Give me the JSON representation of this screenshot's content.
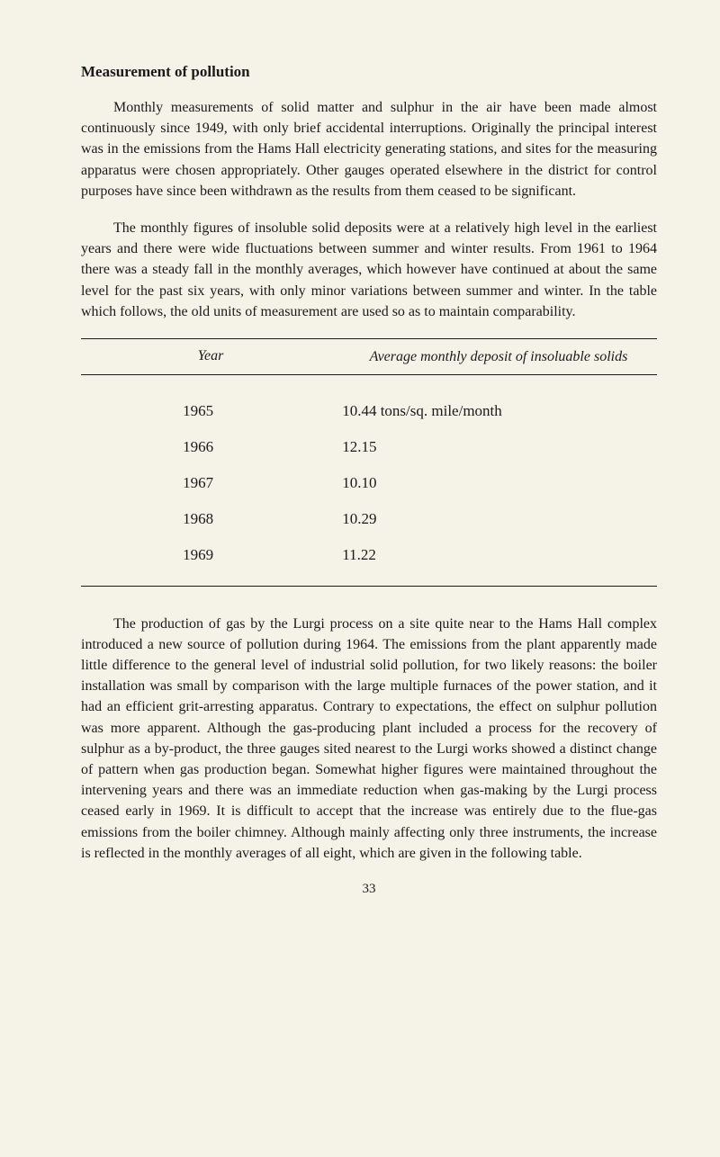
{
  "section_title": "Measurement of pollution",
  "paragraph_1": "Monthly measurements of solid matter and sulphur in the air have been made almost continuously since 1949, with only brief accidental interruptions. Originally the principal interest was in the emissions from the Hams Hall electricity generating stations, and sites for the measuring apparatus were chosen appropriately. Other gauges operated elsewhere in the district for control purposes have since been withdrawn as the results from them ceased to be significant.",
  "paragraph_2": "The monthly figures of insoluble solid deposits were at a relatively high level in the earliest years and there were wide fluctuations between summer and winter results. From 1961 to 1964 there was a steady fall in the monthly averages, which however have continued at about the same level for the past six years, with only minor variations between summer and winter. In the table which follows, the old units of measurement are used so as to maintain comparability.",
  "table": {
    "header_year": "Year",
    "header_value": "Average monthly deposit of insoluable solids",
    "rows": [
      {
        "year": "1965",
        "value": "10.44 tons/sq. mile/month"
      },
      {
        "year": "1966",
        "value": "12.15"
      },
      {
        "year": "1967",
        "value": "10.10"
      },
      {
        "year": "1968",
        "value": "10.29"
      },
      {
        "year": "1969",
        "value": "11.22"
      }
    ]
  },
  "paragraph_3": "The production of gas by the Lurgi process on a site quite near to the Hams Hall complex introduced a new source of pollution during 1964. The emissions from the plant apparently made little difference to the general level of industrial solid pollution, for two likely reasons: the boiler installation was small by comparison with the large multiple furnaces of the power station, and it had an efficient grit-arresting apparatus. Contrary to expectations, the effect on sulphur pollution was more apparent. Although the gas-producing plant included a process for the recovery of sulphur as a by-product, the three gauges sited nearest to the Lurgi works showed a distinct change of pattern when gas production began. Somewhat higher figures were maintained throughout the intervening years and there was an immediate reduction when gas-making by the Lurgi process ceased early in 1969. It is difficult to accept that the increase was entirely due to the flue-gas emissions from the boiler chimney. Although mainly affecting only three instruments, the increase is reflected in the monthly averages of all eight, which are given in the following table.",
  "page_number": "33"
}
